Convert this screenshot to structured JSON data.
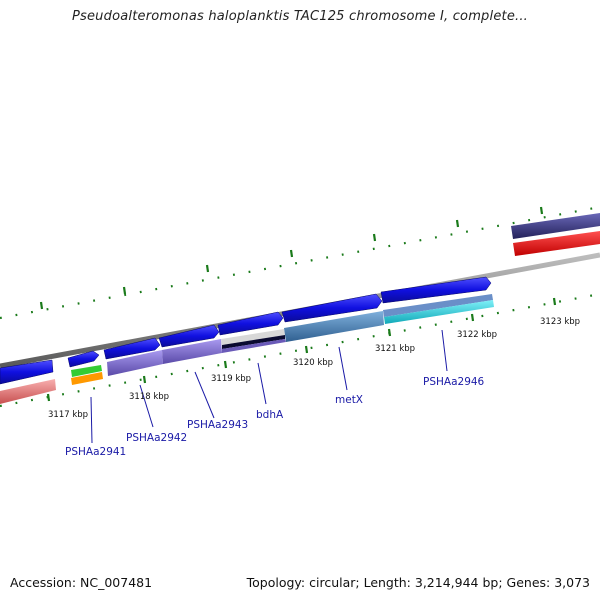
{
  "title": "Pseudoalteromonas haloplanktis TAC125 chromosome I, complete...",
  "footer": {
    "accession": "Accession: NC_007481",
    "stats": "Topology: circular; Length: 3,214,944 bp; Genes: 3,073"
  },
  "tick_labels": [
    "3117 kbp",
    "3118 kbp",
    "3119 kbp",
    "3120 kbp",
    "3121 kbp",
    "3122 kbp",
    "3123 kbp"
  ],
  "gene_labels": [
    "PSHAa2941",
    "PSHAa2942",
    "PSHAa2943",
    "bdhA",
    "metX",
    "PSHAa2946"
  ],
  "colors": {
    "backbone": "#8a8a8a",
    "forward_cds": "#1010e0",
    "gc_skew_ticks": "#1a7a1a",
    "label": "#1a1aa6",
    "feature_purple": "#7b68c8",
    "feature_steelblue": "#4f86b8",
    "feature_cyan": "#20c8d8",
    "feature_red": "#ee1111",
    "feature_pink": "#f08a8a",
    "feature_navy": "#3c3a8c",
    "feature_green": "#33cc33",
    "feature_orange": "#ff9900"
  }
}
